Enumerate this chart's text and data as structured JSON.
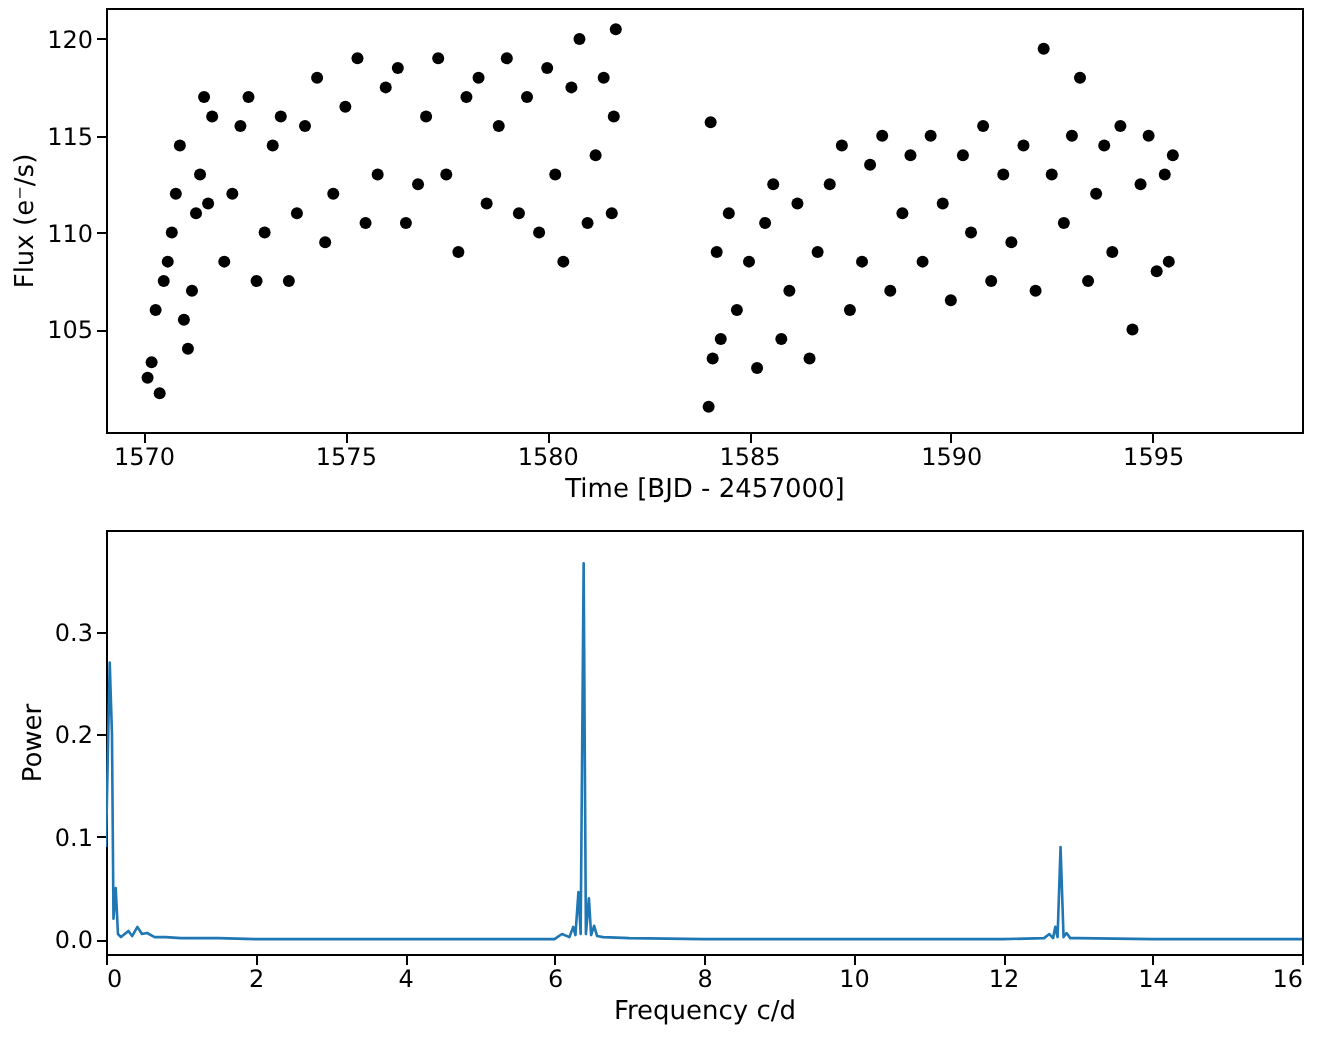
{
  "chart_data": [
    {
      "type": "scatter",
      "xlabel": "Time [BJD - 2457000]",
      "ylabel": "Flux (e⁻/s)",
      "xlim": [
        1569.07,
        1598.7
      ],
      "ylim": [
        99.7,
        121.6
      ],
      "xticks": [
        1570,
        1575,
        1580,
        1585,
        1590,
        1595
      ],
      "yticks": [
        105,
        110,
        115,
        120
      ],
      "grid": false,
      "marker": "circle",
      "series": [
        {
          "color": "#000000",
          "x": [
            1570.1,
            1570.2,
            1570.4,
            1570.3,
            1570.5,
            1570.6,
            1570.7,
            1570.8,
            1570.9,
            1571.0,
            1571.1,
            1571.2,
            1571.3,
            1571.4,
            1571.5,
            1571.6,
            1571.7,
            1572.0,
            1572.2,
            1572.4,
            1572.6,
            1572.8,
            1573.0,
            1573.2,
            1573.4,
            1573.6,
            1573.8,
            1574.0,
            1574.3,
            1574.5,
            1574.7,
            1575.0,
            1575.3,
            1575.5,
            1575.8,
            1576.0,
            1576.3,
            1576.5,
            1576.8,
            1577.0,
            1577.3,
            1577.5,
            1577.8,
            1578.0,
            1578.3,
            1578.5,
            1578.8,
            1579.0,
            1579.3,
            1579.5,
            1579.8,
            1580.0,
            1580.2,
            1580.4,
            1580.6,
            1580.8,
            1581.0,
            1581.2,
            1581.4,
            1581.6,
            1581.7,
            1581.65,
            1584.0,
            1584.05,
            1584.1,
            1584.2,
            1584.3,
            1584.5,
            1584.7,
            1585.0,
            1585.2,
            1585.4,
            1585.6,
            1585.8,
            1586.0,
            1586.2,
            1586.5,
            1586.7,
            1587.0,
            1587.3,
            1587.5,
            1587.8,
            1588.0,
            1588.3,
            1588.5,
            1588.8,
            1589.0,
            1589.3,
            1589.5,
            1589.8,
            1590.0,
            1590.3,
            1590.5,
            1590.8,
            1591.0,
            1591.3,
            1591.5,
            1591.8,
            1592.1,
            1592.3,
            1592.5,
            1592.8,
            1593.0,
            1593.2,
            1593.4,
            1593.6,
            1593.8,
            1594.0,
            1594.2,
            1594.5,
            1594.7,
            1594.9,
            1595.1,
            1595.3,
            1595.5,
            1595.4
          ],
          "values": [
            102.5,
            103.3,
            101.7,
            106,
            107.5,
            108.5,
            110,
            112,
            114.5,
            105.5,
            104,
            107,
            111,
            113,
            117,
            111.5,
            116,
            108.5,
            112,
            115.5,
            117,
            107.5,
            110,
            114.5,
            116,
            107.5,
            111,
            115.5,
            118,
            109.5,
            112,
            116.5,
            119,
            110.5,
            113,
            117.5,
            118.5,
            110.5,
            112.5,
            116,
            119,
            113,
            109,
            117,
            118,
            111.5,
            115.5,
            119,
            111,
            117,
            110,
            118.5,
            113,
            108.5,
            117.5,
            120,
            110.5,
            114,
            118,
            111,
            120.5,
            116,
            101,
            115.7,
            103.5,
            109,
            104.5,
            111,
            106,
            108.5,
            103,
            110.5,
            112.5,
            104.5,
            107,
            111.5,
            103.5,
            109,
            112.5,
            114.5,
            106,
            108.5,
            113.5,
            115,
            107,
            111,
            114,
            108.5,
            115,
            111.5,
            106.5,
            114,
            110,
            115.5,
            107.5,
            113,
            109.5,
            114.5,
            107,
            119.5,
            113,
            110.5,
            115,
            118,
            107.5,
            112,
            114.5,
            109,
            115.5,
            105,
            112.5,
            115,
            108,
            113,
            114,
            108.5
          ]
        }
      ]
    },
    {
      "type": "line",
      "xlabel": "Frequency c/d",
      "ylabel": "Power",
      "xlim": [
        0,
        16
      ],
      "ylim": [
        -0.0145,
        0.3995
      ],
      "xticks": [
        0,
        2,
        4,
        6,
        8,
        10,
        12,
        14,
        16
      ],
      "yticks": [
        {
          "value": 0,
          "label": "0.0"
        },
        0.1,
        0.2,
        0.3
      ],
      "grid": false,
      "marker": "none",
      "line_style": "solid",
      "series": [
        {
          "color": "#1f77b4",
          "x": [
            0,
            0.03,
            0.05,
            0.08,
            0.1,
            0.13,
            0.16,
            0.2,
            0.3,
            0.35,
            0.42,
            0.48,
            0.55,
            0.65,
            0.8,
            1.0,
            1.5,
            2,
            3,
            4,
            5,
            6,
            6.1,
            6.2,
            6.25,
            6.28,
            6.32,
            6.35,
            6.39,
            6.42,
            6.46,
            6.49,
            6.53,
            6.57,
            6.65,
            7,
            8,
            10,
            12,
            12.55,
            12.62,
            12.67,
            12.7,
            12.73,
            12.77,
            12.81,
            12.85,
            12.9,
            13,
            14,
            16
          ],
          "values": [
            0.09,
            0.2,
            0.27,
            0.2,
            0.02,
            0.05,
            0.005,
            0.002,
            0.008,
            0.003,
            0.012,
            0.005,
            0.006,
            0.002,
            0.002,
            0.001,
            0.001,
            0,
            0,
            0,
            0,
            0,
            0.005,
            0.002,
            0.012,
            0.004,
            0.046,
            0.005,
            0.367,
            0.005,
            0.04,
            0.004,
            0.013,
            0.003,
            0.002,
            0.001,
            0,
            0,
            0,
            0.001,
            0.005,
            0.001,
            0.012,
            0.002,
            0.09,
            0.002,
            0.006,
            0.001,
            0.001,
            0,
            0
          ]
        }
      ]
    }
  ]
}
